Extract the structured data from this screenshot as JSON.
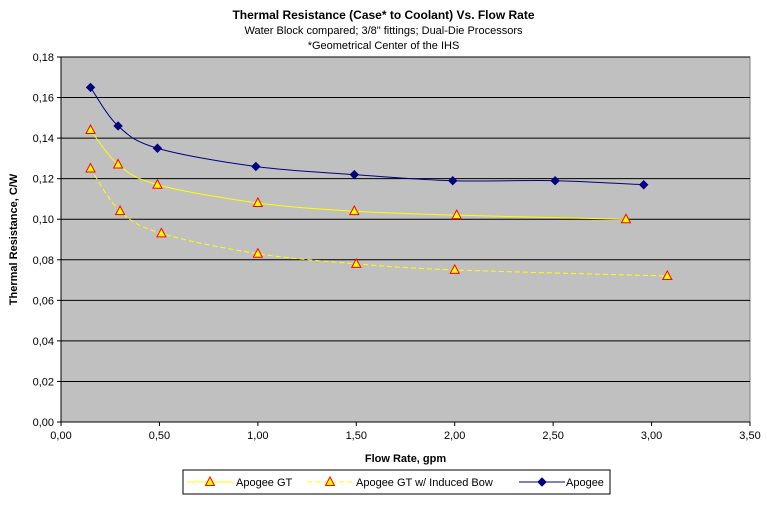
{
  "chart_data": {
    "type": "line",
    "title": "Thermal Resistance (Case* to Coolant) Vs. Flow Rate",
    "subtitle": "Water Block compared; 3/8\" fittings; Dual-Die Processors",
    "note": "*Geometrical Center of the IHS",
    "xlabel": "Flow Rate, gpm",
    "ylabel": "Thermal Resistance, C/W",
    "xlim": [
      0,
      3.5
    ],
    "ylim": [
      0,
      0.18
    ],
    "x_ticks": [
      "0,00",
      "0,50",
      "1,00",
      "1,50",
      "2,00",
      "2,50",
      "3,00",
      "3,50"
    ],
    "y_ticks": [
      "0,00",
      "0,02",
      "0,04",
      "0,06",
      "0,08",
      "0,10",
      "0,12",
      "0,14",
      "0,16",
      "0,18"
    ],
    "grid": "horizontal",
    "legend_position": "bottom",
    "series": [
      {
        "name": "Apogee GT",
        "color": "#ffff00",
        "marker": "triangle",
        "dashed": false,
        "points": [
          [
            0.15,
            0.144
          ],
          [
            0.29,
            0.127
          ],
          [
            0.49,
            0.117
          ],
          [
            1.0,
            0.108
          ],
          [
            1.49,
            0.104
          ],
          [
            2.01,
            0.102
          ],
          [
            2.87,
            0.1
          ]
        ]
      },
      {
        "name": "Apogee GT w/ Induced Bow",
        "color": "#ffff00",
        "marker": "triangle",
        "dashed": true,
        "points": [
          [
            0.15,
            0.125
          ],
          [
            0.3,
            0.104
          ],
          [
            0.51,
            0.093
          ],
          [
            1.0,
            0.083
          ],
          [
            1.5,
            0.078
          ],
          [
            2.0,
            0.075
          ],
          [
            3.08,
            0.072
          ]
        ]
      },
      {
        "name": "Apogee",
        "color": "#000080",
        "marker": "diamond",
        "dashed": false,
        "points": [
          [
            0.15,
            0.165
          ],
          [
            0.29,
            0.146
          ],
          [
            0.49,
            0.135
          ],
          [
            0.99,
            0.126
          ],
          [
            1.49,
            0.122
          ],
          [
            1.99,
            0.119
          ],
          [
            2.51,
            0.119
          ],
          [
            2.96,
            0.117
          ]
        ]
      }
    ]
  }
}
